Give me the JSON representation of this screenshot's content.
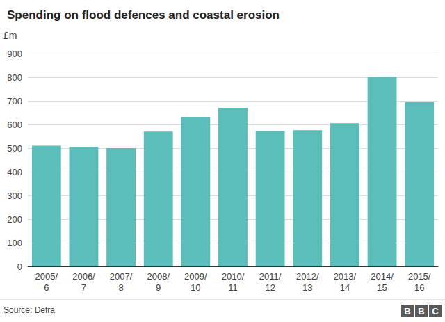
{
  "chart_data": {
    "type": "bar",
    "title": "Spending on flood defences and coastal erosion",
    "y_label": "£m",
    "categories": [
      "2005/\n6",
      "2006/\n7",
      "2007/\n8",
      "2008/\n9",
      "2009/\n10",
      "2010/\n11",
      "2011/\n12",
      "2012/\n13",
      "2013/\n14",
      "2014/\n15",
      "2015/\n16"
    ],
    "values": [
      510,
      505,
      500,
      570,
      632,
      670,
      572,
      576,
      605,
      802,
      695
    ],
    "color": "#5bbdb9",
    "ylim": [
      0,
      900
    ],
    "yticks": [
      0,
      100,
      200,
      300,
      400,
      500,
      600,
      700,
      800,
      900
    ],
    "grid": true,
    "source": "Source: Defra",
    "logo": "BBC"
  }
}
